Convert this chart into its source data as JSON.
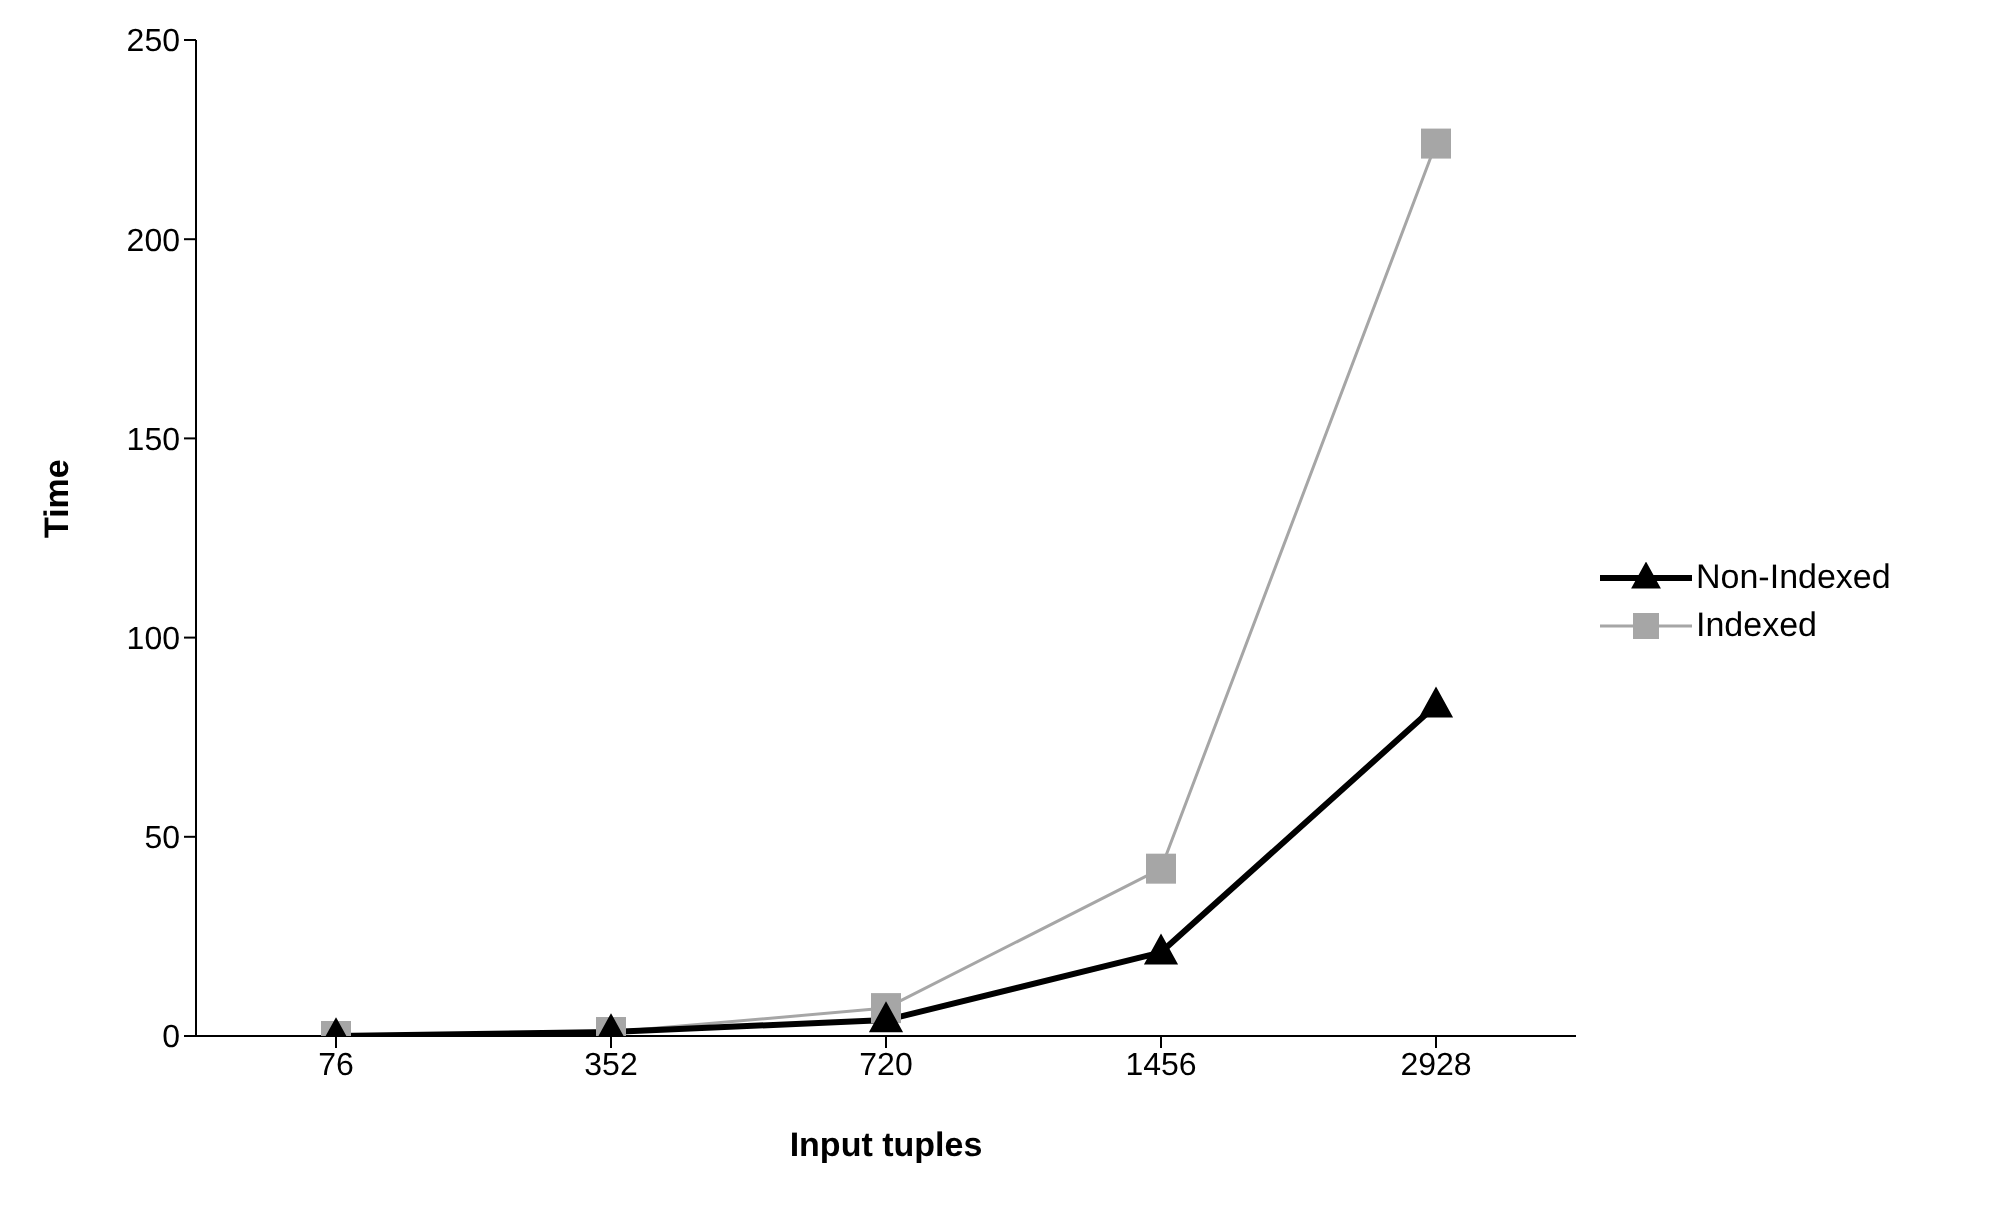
{
  "chart_data": {
    "type": "line",
    "xlabel": "Input tuples",
    "ylabel": "Time",
    "categories": [
      "76",
      "352",
      "720",
      "1456",
      "2928"
    ],
    "series": [
      {
        "name": "Non-Indexed",
        "color": "#000000",
        "marker": "triangle",
        "values": [
          0,
          1,
          4,
          21,
          83
        ]
      },
      {
        "name": "Indexed",
        "color": "#a6a6a6",
        "marker": "square",
        "values": [
          0,
          1,
          7,
          42,
          224
        ]
      }
    ],
    "ylim": [
      0,
      250
    ],
    "yticks": [
      0,
      50,
      100,
      150,
      200,
      250
    ],
    "grid": false,
    "legend": "right"
  }
}
